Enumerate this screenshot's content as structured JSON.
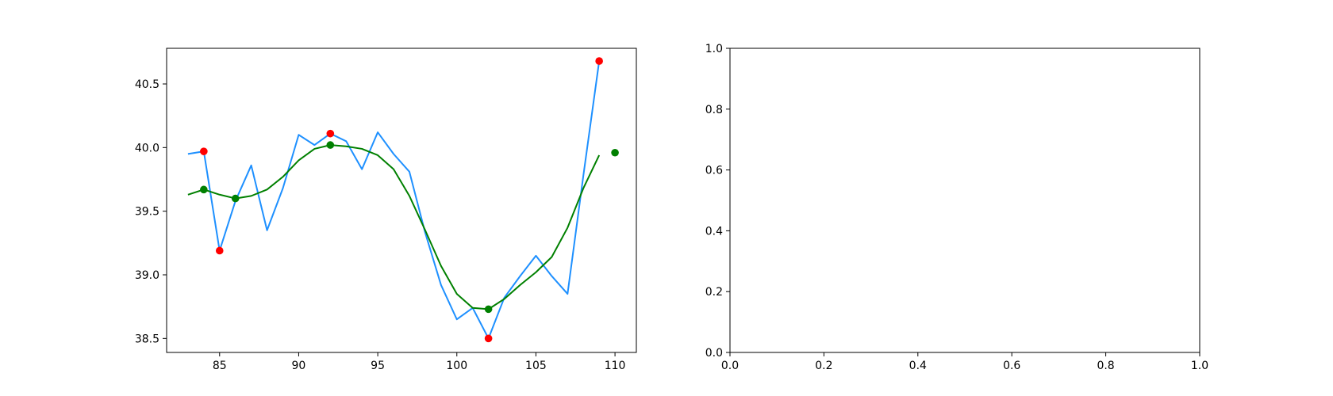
{
  "chart_data": [
    {
      "type": "line",
      "title": "",
      "xlabel": "",
      "ylabel": "",
      "xlim": [
        81.65,
        111.35
      ],
      "ylim": [
        38.39,
        40.78
      ],
      "xticks": [
        85,
        90,
        95,
        100,
        105,
        110
      ],
      "yticks": [
        38.5,
        39.0,
        39.5,
        40.0,
        40.5
      ],
      "xtick_labels": [
        "85",
        "90",
        "95",
        "100",
        "105",
        "110"
      ],
      "ytick_labels": [
        "38.5",
        "39.0",
        "39.5",
        "40.0",
        "40.5"
      ],
      "grid": false,
      "series": [
        {
          "color": "#1e90ff",
          "x": [
            83,
            84,
            85,
            86,
            87,
            88,
            89,
            90,
            91,
            92,
            93,
            94,
            95,
            96,
            97,
            98,
            99,
            100,
            101,
            102,
            103,
            104,
            105,
            106,
            107,
            108,
            109
          ],
          "y": [
            39.95,
            39.97,
            39.19,
            39.58,
            39.86,
            39.35,
            39.68,
            40.1,
            40.02,
            40.11,
            40.05,
            39.83,
            40.12,
            39.95,
            39.81,
            39.33,
            38.92,
            38.65,
            38.74,
            38.5,
            38.82,
            38.99,
            39.15,
            38.99,
            38.85,
            39.78,
            40.68
          ]
        },
        {
          "color": "#008000",
          "x": [
            83,
            84,
            85,
            86,
            87,
            88,
            89,
            90,
            91,
            92,
            93,
            94,
            95,
            96,
            97,
            98,
            99,
            100,
            101,
            102,
            103,
            104,
            105,
            106,
            107,
            108,
            109
          ],
          "y": [
            39.63,
            39.67,
            39.63,
            39.6,
            39.62,
            39.67,
            39.77,
            39.9,
            39.99,
            40.02,
            40.01,
            39.99,
            39.94,
            39.83,
            39.62,
            39.35,
            39.07,
            38.85,
            38.74,
            38.73,
            38.81,
            38.92,
            39.02,
            39.14,
            39.37,
            39.68,
            39.94
          ]
        }
      ],
      "scatter": [
        {
          "color": "#ff0000",
          "x": [
            84,
            85,
            92,
            102,
            109
          ],
          "y": [
            39.97,
            39.19,
            40.11,
            38.5,
            40.68
          ]
        },
        {
          "color": "#008000",
          "x": [
            84,
            86,
            92,
            102,
            110
          ],
          "y": [
            39.67,
            39.6,
            40.02,
            38.73,
            39.96
          ]
        }
      ]
    },
    {
      "type": "line",
      "title": "",
      "xlabel": "",
      "ylabel": "",
      "xlim": [
        0.0,
        1.0
      ],
      "ylim": [
        0.0,
        1.0
      ],
      "xticks": [
        0.0,
        0.2,
        0.4,
        0.6,
        0.8,
        1.0
      ],
      "yticks": [
        0.0,
        0.2,
        0.4,
        0.6,
        0.8,
        1.0
      ],
      "xtick_labels": [
        "0.0",
        "0.2",
        "0.4",
        "0.6",
        "0.8",
        "1.0"
      ],
      "ytick_labels": [
        "0.0",
        "0.2",
        "0.4",
        "0.6",
        "0.8",
        "1.0"
      ],
      "grid": false,
      "series": [],
      "scatter": []
    }
  ]
}
